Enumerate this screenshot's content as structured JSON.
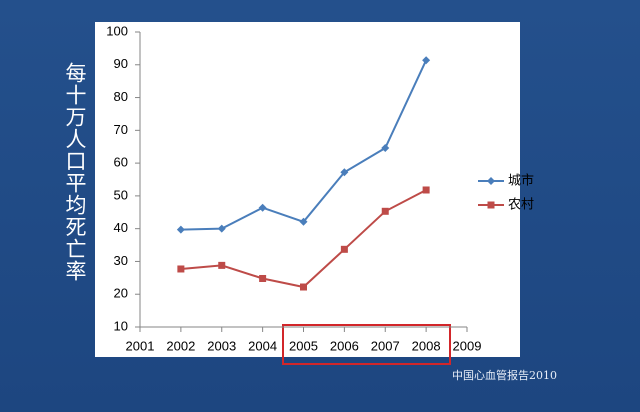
{
  "chart_data": {
    "type": "line",
    "y_label": "每十万人口平均死亡率",
    "source": "中国心血管报告2010",
    "x": [
      2002,
      2003,
      2004,
      2005,
      2006,
      2007,
      2008
    ],
    "series": [
      {
        "name": "城市",
        "color": "#4a7ebb",
        "marker": "diamond",
        "values": [
          39.7,
          40,
          46.4,
          42.1,
          57.2,
          64.6,
          91.4
        ]
      },
      {
        "name": "农村",
        "color": "#be4b48",
        "marker": "square",
        "values": [
          27.7,
          28.8,
          24.8,
          22.2,
          33.7,
          45.3,
          51.8
        ]
      }
    ],
    "xlim": [
      2001,
      2009
    ],
    "xticks": [
      2001,
      2002,
      2003,
      2004,
      2005,
      2006,
      2007,
      2008,
      2009
    ],
    "ylim": [
      10,
      100
    ],
    "yticks": [
      10,
      20,
      30,
      40,
      50,
      60,
      70,
      80,
      90,
      100
    ],
    "grid": false,
    "legend": "right"
  }
}
